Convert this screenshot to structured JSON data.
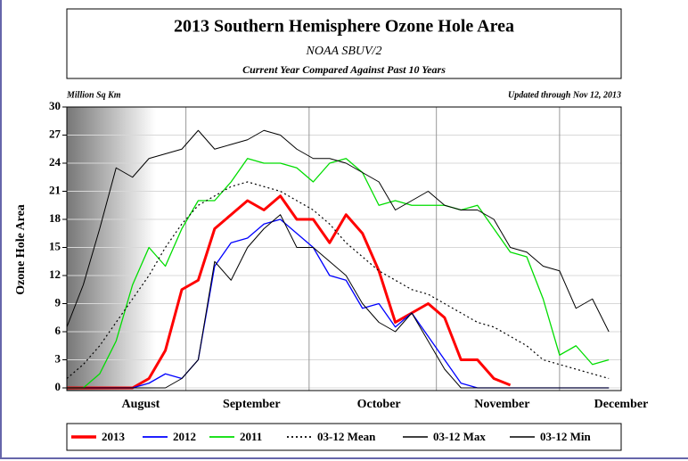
{
  "chart_data": {
    "type": "line",
    "title": "2013 Southern Hemisphere Ozone Hole Area",
    "subtitle": "NOAA SBUV/2",
    "subtitle2": "Current Year Compared Against Past 10 Years",
    "y_unit_label": "Million Sq Km",
    "updated": "Updated through Nov 12, 2013",
    "ylabel": "Ozone Hole Area",
    "x": [
      2,
      6,
      10,
      14,
      18,
      22,
      26,
      30,
      34,
      38,
      42,
      46,
      50,
      54,
      58,
      62,
      66,
      70,
      74,
      78,
      82,
      86,
      90,
      94,
      98,
      102,
      106,
      110,
      114,
      118,
      122,
      126,
      130,
      134
    ],
    "xlim": [
      2,
      137
    ],
    "xticks": [
      {
        "value": 20,
        "label": "August"
      },
      {
        "value": 47,
        "label": "September"
      },
      {
        "value": 78,
        "label": "October"
      },
      {
        "value": 108,
        "label": "November"
      },
      {
        "value": 137,
        "label": "December"
      }
    ],
    "xgrid": [
      31,
      61,
      92,
      122
    ],
    "ylim": [
      0,
      30
    ],
    "yticks": [
      0,
      3,
      6,
      9,
      12,
      15,
      18,
      21,
      24,
      27,
      30
    ],
    "grid": true,
    "series": [
      {
        "name": "2013",
        "color": "#ff0000",
        "width": 3,
        "style": "solid",
        "values": [
          0,
          0,
          0,
          0,
          0,
          1,
          4,
          10.5,
          11.5,
          17,
          18.5,
          20,
          19,
          20.5,
          18,
          18,
          15.5,
          18.5,
          16.5,
          12.5,
          7,
          8,
          9,
          7.5,
          3,
          3,
          1,
          0.3,
          null,
          null,
          null,
          null,
          null,
          null
        ]
      },
      {
        "name": "2012",
        "color": "#0000ff",
        "width": 1.3,
        "style": "solid",
        "values": [
          0,
          0,
          0,
          0,
          0,
          0.5,
          1.5,
          1,
          3,
          13,
          15.5,
          16,
          17.5,
          18,
          16.5,
          15,
          12,
          11.5,
          8.5,
          9,
          6.5,
          8,
          5.5,
          3,
          0.5,
          0,
          0,
          0,
          0,
          0,
          0,
          0,
          0,
          0
        ]
      },
      {
        "name": "2011",
        "color": "#00dd00",
        "width": 1.3,
        "style": "solid",
        "values": [
          0,
          0,
          1.5,
          5,
          11,
          15,
          13,
          17,
          20,
          20,
          22,
          24.5,
          24,
          24,
          23.5,
          22,
          24,
          24.5,
          23,
          19.5,
          20,
          19.5,
          19.5,
          19.5,
          19,
          19.5,
          17,
          14.5,
          14,
          9.5,
          3.5,
          4.5,
          2.5,
          3
        ]
      },
      {
        "name": "03-12 Mean",
        "color": "#000000",
        "width": 1.2,
        "style": "dotted",
        "values": [
          1,
          2.5,
          4.5,
          7,
          9.5,
          12,
          15,
          17.5,
          19.5,
          20.5,
          21.5,
          22,
          21.5,
          21,
          20,
          19,
          17.5,
          15.5,
          14,
          12.5,
          11.5,
          10.5,
          10,
          9,
          8,
          7,
          6.5,
          5.5,
          4.5,
          3,
          2.5,
          2,
          1.5,
          1
        ]
      },
      {
        "name": "03-12 Max",
        "color": "#000000",
        "width": 1,
        "style": "solid",
        "values": [
          6.5,
          11,
          17,
          23.5,
          22.5,
          24.5,
          25,
          25.5,
          27.5,
          25.5,
          26,
          26.5,
          27.5,
          27,
          25.5,
          24.5,
          24.5,
          24,
          23,
          22,
          19,
          20,
          21,
          19.5,
          19,
          19,
          18,
          15,
          14.5,
          13,
          12.5,
          8.5,
          9.5,
          6
        ]
      },
      {
        "name": "03-12 Min",
        "color": "#000000",
        "width": 1,
        "style": "solid",
        "values": [
          0,
          0,
          0,
          0,
          0,
          0,
          0,
          1,
          3,
          13.5,
          11.5,
          15,
          17,
          18.5,
          15,
          15,
          13.5,
          12,
          9,
          7,
          6,
          8,
          5,
          2,
          0,
          0,
          0,
          0,
          0,
          0,
          0,
          0,
          0,
          0
        ]
      }
    ]
  }
}
